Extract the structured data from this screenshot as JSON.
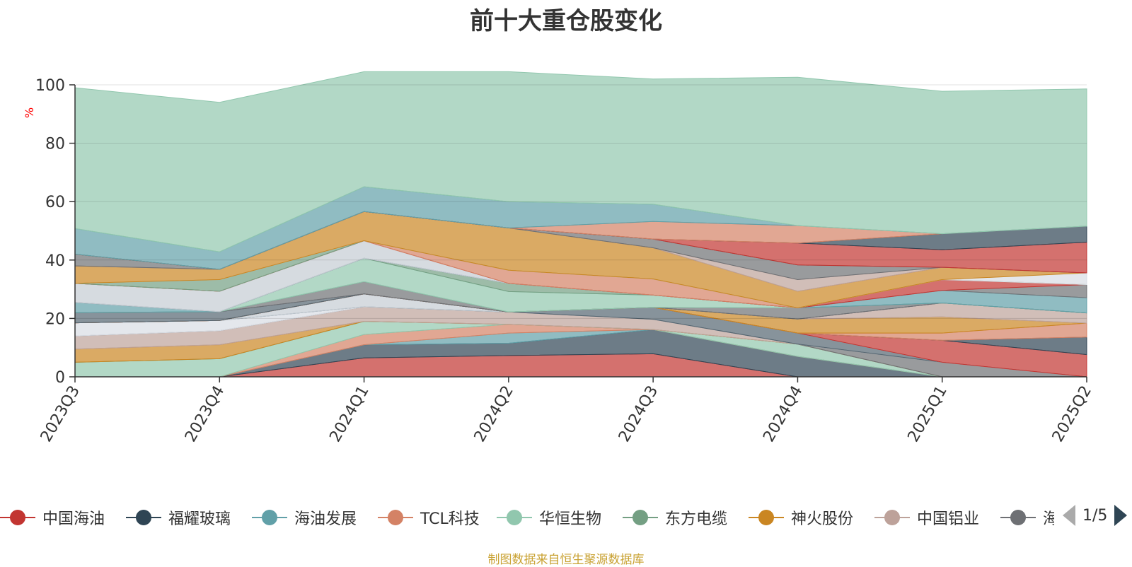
{
  "chart_data": {
    "type": "area",
    "title": "前十大重仓股变化",
    "ylabel": "%",
    "ylim": [
      0,
      100
    ],
    "yticks": [
      0,
      20,
      40,
      60,
      80,
      100
    ],
    "categories": [
      "2023Q3",
      "2023Q4",
      "2024Q1",
      "2024Q2",
      "2024Q3",
      "2024Q4",
      "2025Q1",
      "2025Q2"
    ],
    "grid": true,
    "stacked": true,
    "source": "制图数据来自恒生聚源数据库",
    "series": [
      {
        "name": "中国海油",
        "color": "#c23531",
        "values": [
          0,
          0,
          6.5,
          7.3,
          7.9,
          0,
          0,
          0
        ]
      },
      {
        "name": "福耀玻璃",
        "color": "#2f4554",
        "values": [
          0,
          0,
          4.5,
          4.2,
          8.3,
          7.0,
          0,
          0
        ]
      },
      {
        "name": "海油发展",
        "color": "#61a0a8",
        "values": [
          0,
          0,
          0,
          3.5,
          0,
          0,
          0,
          0
        ]
      },
      {
        "name": "TCL科技",
        "color": "#d48265",
        "values": [
          0,
          0,
          3.5,
          3.0,
          0,
          0,
          0,
          0
        ]
      },
      {
        "name": "华恒生物",
        "color": "#91c7ae",
        "values": [
          5.0,
          6.2,
          4.5,
          0,
          0,
          4.2,
          0,
          0
        ]
      },
      {
        "name": "东方电缆",
        "color": "#749f83",
        "values": [
          0,
          0,
          0,
          0,
          0,
          0,
          0,
          0
        ]
      },
      {
        "name": "神火股份",
        "color": "#ca8622",
        "values": [
          4.5,
          4.8,
          0,
          0,
          0,
          0,
          0,
          0
        ]
      },
      {
        "name": "中国铝业",
        "color": "#bda29a",
        "values": [
          4.5,
          4.8,
          5.0,
          4.2,
          3.5,
          0,
          0,
          0
        ]
      },
      {
        "name": "海",
        "color": "#6e7074",
        "values": [
          0,
          0,
          0,
          0,
          0,
          0,
          5.0,
          0
        ]
      },
      {
        "name": "",
        "color": "#d9dde4",
        "values": [
          4.5,
          3.5,
          0,
          0,
          0,
          0,
          0,
          0
        ]
      },
      {
        "name": "",
        "color": "#546570",
        "values": [
          0,
          0,
          0,
          0,
          4.1,
          3.8,
          0,
          0
        ]
      },
      {
        "name": "",
        "color": "#c4ccd3",
        "values": [
          0,
          0,
          4.4,
          0,
          0,
          0,
          0,
          0
        ]
      },
      {
        "name": "",
        "color": "#c23531",
        "values": [
          0,
          0,
          0,
          0,
          0,
          0,
          7.5,
          7.6
        ]
      },
      {
        "name": "",
        "color": "#2f4554",
        "values": [
          0,
          0,
          0,
          0,
          0,
          0,
          0,
          6.0
        ]
      },
      {
        "name": "",
        "color": "#d48265",
        "values": [
          0,
          0,
          0,
          0,
          0,
          0,
          2.5,
          4.8
        ]
      },
      {
        "name": "",
        "color": "#ca8622",
        "values": [
          0,
          0,
          0,
          0,
          0,
          4.8,
          5.5,
          0
        ]
      },
      {
        "name": "",
        "color": "#bda29a",
        "values": [
          0,
          0,
          0,
          0,
          0,
          0,
          4.8,
          3.5
        ]
      },
      {
        "name": "",
        "color": "#546570",
        "values": [
          3.5,
          3.0,
          0,
          0,
          0,
          0,
          0,
          0
        ]
      },
      {
        "name": "",
        "color": "#6e7074",
        "values": [
          0,
          0,
          4.2,
          0,
          0,
          3.8,
          0,
          0
        ]
      },
      {
        "name": "",
        "color": "#91c7ae",
        "values": [
          0,
          0,
          8.0,
          7.0,
          4.2,
          0,
          0,
          0
        ]
      },
      {
        "name": "",
        "color": "#749f83",
        "values": [
          0,
          0,
          0,
          2.8,
          0,
          0,
          0,
          0
        ]
      },
      {
        "name": "",
        "color": "#61a0a8",
        "values": [
          3.5,
          0,
          0,
          0,
          0,
          0,
          4.3,
          5.2
        ]
      },
      {
        "name": "",
        "color": "#6e7074",
        "values": [
          0,
          0,
          0,
          0,
          0,
          0,
          0,
          4.5
        ]
      },
      {
        "name": "",
        "color": "#c4ccd3",
        "values": [
          6.5,
          7.0,
          6.0,
          0,
          0,
          0,
          0,
          0
        ]
      },
      {
        "name": "",
        "color": "#c23531",
        "values": [
          0,
          0,
          0,
          0,
          0,
          0,
          3.7,
          0
        ]
      },
      {
        "name": "",
        "color": "#d48265",
        "values": [
          0,
          0,
          0,
          4.5,
          5.5,
          0,
          0,
          0
        ]
      },
      {
        "name": "",
        "color": "#749f83",
        "values": [
          0,
          4.0,
          0,
          0,
          0,
          0,
          0,
          0
        ]
      },
      {
        "name": "",
        "color": "#d9dde4",
        "values": [
          0,
          0,
          0,
          0,
          0,
          0,
          0,
          4.0
        ]
      },
      {
        "name": "",
        "color": "#ca8622",
        "values": [
          6.0,
          3.5,
          10.0,
          14.5,
          10.7,
          5.7,
          4.2,
          0
        ]
      },
      {
        "name": "",
        "color": "#bda29a",
        "values": [
          0,
          0,
          0,
          0,
          0,
          4.0,
          0,
          0
        ]
      },
      {
        "name": "",
        "color": "#6e7074",
        "values": [
          4.0,
          0,
          0,
          0,
          3.0,
          5.0,
          0,
          0
        ]
      },
      {
        "name": "",
        "color": "#c23531",
        "values": [
          0,
          0,
          0,
          0,
          0,
          7.5,
          6.0,
          10.5
        ]
      },
      {
        "name": "",
        "color": "#2f4554",
        "values": [
          0,
          0,
          0,
          0,
          0,
          0,
          5.5,
          5.5
        ]
      },
      {
        "name": "",
        "color": "#d48265",
        "values": [
          0,
          0,
          0,
          0,
          6.0,
          6.0,
          0,
          0
        ]
      },
      {
        "name": "",
        "color": "#61a0a8",
        "values": [
          8.8,
          6.0,
          8.5,
          9.0,
          5.9,
          0,
          0,
          0
        ]
      },
      {
        "name": "",
        "color": "#91c7ae",
        "values": [
          48.2,
          51.2,
          39.4,
          44.5,
          42.9,
          50.8,
          48.8,
          47.0
        ]
      }
    ]
  },
  "legend": {
    "visible": [
      "中国海油",
      "福耀玻璃",
      "海油发展",
      "TCL科技",
      "华恒生物",
      "东方电缆",
      "神火股份",
      "中国铝业",
      "海"
    ],
    "page": "1/5"
  }
}
